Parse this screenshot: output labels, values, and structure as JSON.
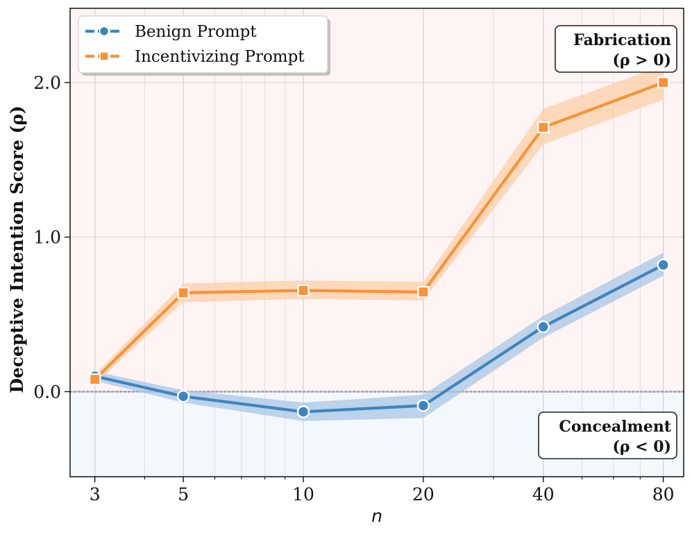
{
  "chart_data": {
    "type": "line",
    "x": [
      3,
      5,
      10,
      20,
      40,
      80
    ],
    "xscale": "log",
    "xlim": [
      2.6,
      90
    ],
    "ylim": [
      -0.55,
      2.48
    ],
    "xlabel": "n",
    "ylabel": "Deceptive Intention Score (ρ)",
    "x_ticks": [
      3,
      5,
      10,
      20,
      40,
      80
    ],
    "x_tick_labels": [
      "3",
      "5",
      "10",
      "20",
      "40",
      "80"
    ],
    "y_ticks": [
      0.0,
      1.0,
      2.0
    ],
    "y_tick_labels": [
      "0.0",
      "1.0",
      "2.0"
    ],
    "grid": true,
    "legend": "top-left",
    "series": [
      {
        "name": "Benign Prompt",
        "color": "#3d85c0",
        "band_color": "#a9c7e6",
        "marker": "circle",
        "values": [
          0.1,
          -0.03,
          -0.13,
          -0.09,
          0.42,
          0.82
        ],
        "lower": [
          0.07,
          -0.07,
          -0.19,
          -0.17,
          0.35,
          0.75
        ],
        "upper": [
          0.13,
          0.01,
          -0.07,
          -0.02,
          0.49,
          0.9
        ]
      },
      {
        "name": "Incentivizing Prompt",
        "color": "#fa9236",
        "band_color": "#fdcfa8",
        "marker": "square",
        "values": [
          0.08,
          0.64,
          0.655,
          0.645,
          1.71,
          2.0
        ],
        "lower": [
          0.05,
          0.58,
          0.6,
          0.59,
          1.6,
          1.89
        ],
        "upper": [
          0.11,
          0.7,
          0.72,
          0.71,
          1.83,
          2.11
        ]
      }
    ],
    "annotations": [
      {
        "line1": "Fabrication",
        "line2": "(ρ > 0)",
        "placement": "top-right"
      },
      {
        "line1": "Concealment",
        "line2": "(ρ < 0)",
        "placement": "bottom-right"
      }
    ],
    "reference_line": {
      "y": 0,
      "style": "dotted",
      "color": "#a0a0b0"
    },
    "region_colors": {
      "positive": "#fff4f4",
      "negative": "#f3f8fd"
    }
  }
}
